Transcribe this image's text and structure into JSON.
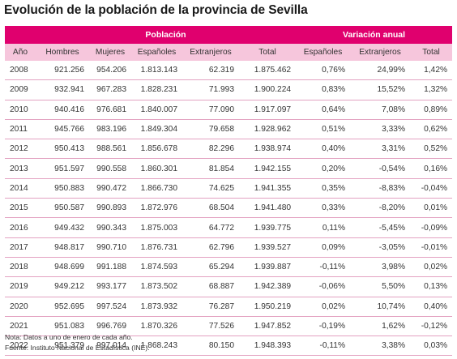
{
  "title": "Evolución de la población de la provincia de Sevilla",
  "group_headers": {
    "poblacion": "Población",
    "variacion": "Variación anual"
  },
  "columns": [
    "Año",
    "Hombres",
    "Mujeres",
    "Españoles",
    "Extranjeros",
    "Total",
    "Españoles",
    "Extranjeros",
    "Total"
  ],
  "rows": [
    [
      "2008",
      "921.256",
      "954.206",
      "1.813.143",
      "62.319",
      "1.875.462",
      "0,76%",
      "24,99%",
      "1,42%"
    ],
    [
      "2009",
      "932.941",
      "967.283",
      "1.828.231",
      "71.993",
      "1.900.224",
      "0,83%",
      "15,52%",
      "1,32%"
    ],
    [
      "2010",
      "940.416",
      "976.681",
      "1.840.007",
      "77.090",
      "1.917.097",
      "0,64%",
      "7,08%",
      "0,89%"
    ],
    [
      "2011",
      "945.766",
      "983.196",
      "1.849.304",
      "79.658",
      "1.928.962",
      "0,51%",
      "3,33%",
      "0,62%"
    ],
    [
      "2012",
      "950.413",
      "988.561",
      "1.856.678",
      "82.296",
      "1.938.974",
      "0,40%",
      "3,31%",
      "0,52%"
    ],
    [
      "2013",
      "951.597",
      "990.558",
      "1.860.301",
      "81.854",
      "1.942.155",
      "0,20%",
      "-0,54%",
      "0,16%"
    ],
    [
      "2014",
      "950.883",
      "990.472",
      "1.866.730",
      "74.625",
      "1.941.355",
      "0,35%",
      "-8,83%",
      "-0,04%"
    ],
    [
      "2015",
      "950.587",
      "990.893",
      "1.872.976",
      "68.504",
      "1.941.480",
      "0,33%",
      "-8,20%",
      "0,01%"
    ],
    [
      "2016",
      "949.432",
      "990.343",
      "1.875.003",
      "64.772",
      "1.939.775",
      "0,11%",
      "-5,45%",
      "-0,09%"
    ],
    [
      "2017",
      "948.817",
      "990.710",
      "1.876.731",
      "62.796",
      "1.939.527",
      "0,09%",
      "-3,05%",
      "-0,01%"
    ],
    [
      "2018",
      "948.699",
      "991.188",
      "1.874.593",
      "65.294",
      "1.939.887",
      "-0,11%",
      "3,98%",
      "0,02%"
    ],
    [
      "2019",
      "949.212",
      "993.177",
      "1.873.502",
      "68.887",
      "1.942.389",
      "-0,06%",
      "5,50%",
      "0,13%"
    ],
    [
      "2020",
      "952.695",
      "997.524",
      "1.873.932",
      "76.287",
      "1.950.219",
      "0,02%",
      "10,74%",
      "0,40%"
    ],
    [
      "2021",
      "951.083",
      "996.769",
      "1.870.326",
      "77.526",
      "1.947.852",
      "-0,19%",
      "1,62%",
      "-0,12%"
    ],
    [
      "2022",
      "951.379",
      "997.014",
      "1.868.243",
      "80.150",
      "1.948.393",
      "-0,11%",
      "3,38%",
      "0,03%"
    ]
  ],
  "notes": {
    "nota": "Nota: Datos a uno de enero de cada año.",
    "fuente": "Fuente: Instituto Nacional de Estadística (INE)."
  },
  "colors": {
    "header_bg": "#e0006e",
    "subheader_bg": "#f6c6dc",
    "row_divider": "#e3a2c1"
  }
}
